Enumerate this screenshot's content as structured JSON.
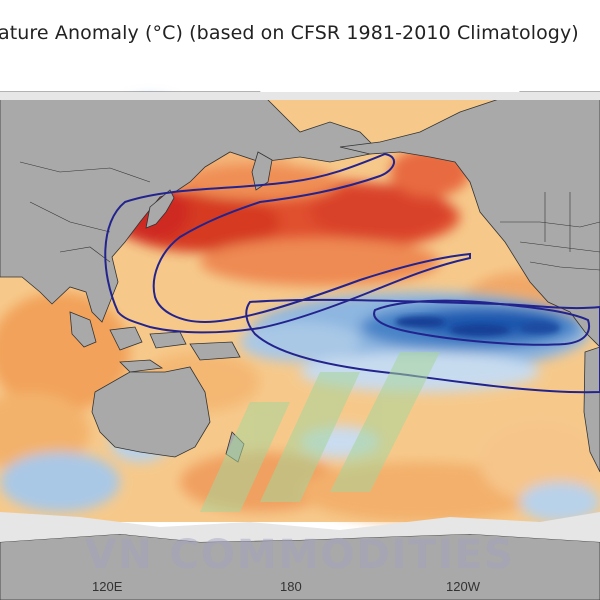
{
  "title": "ature Anomaly (°C) (based on CFSR 1981-2010 Climatology)",
  "watermark": "VN COMMODITIES",
  "lon_ticks": [
    {
      "label": "120E"
    },
    {
      "label": "180"
    },
    {
      "label": "120W"
    }
  ],
  "colors": {
    "ocean_neutral": "#f7d79a",
    "warm_anomaly": "#d73027",
    "cool_anomaly": "#2166ac",
    "land": "#a9a9a9",
    "ice": "#e8e8e8",
    "contour": "#23238e"
  }
}
